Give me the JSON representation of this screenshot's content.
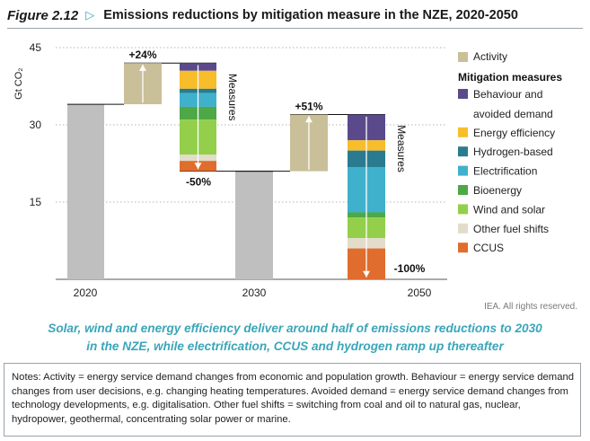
{
  "figure": {
    "label": "Figure 2.12",
    "title": "Emissions reductions by mitigation measure in the NZE, 2020-2050",
    "rights": "IEA. All rights reserved.",
    "caption_line1": "Solar, wind and energy efficiency deliver around half of emissions reductions to 2030",
    "caption_line2": "in the NZE, while electrification, CCUS and hydrogen ramp up thereafter",
    "notes": "Notes: Activity = energy service demand changes from economic and population growth. Behaviour = energy service demand changes from user decisions, e.g. changing heating temperatures. Avoided demand = energy service demand changes from technology developments, e.g. digitalisation. Other fuel shifts = switching from coal and oil to natural gas, nuclear, hydropower, geothermal, concentrating solar power or marine."
  },
  "chart_data": {
    "type": "bar",
    "subtype": "waterfall",
    "ylabel": "Gt CO₂",
    "ylim": [
      0,
      45
    ],
    "yticks": [
      15,
      30,
      45
    ],
    "grid": "horizontal dotted",
    "categories": [
      "2020",
      "2030",
      "2050"
    ],
    "totals": [
      {
        "label": "2020",
        "value": 34
      },
      {
        "label": "2030",
        "value": 21
      },
      {
        "label": "2050",
        "value": 0
      }
    ],
    "activity_steps": [
      {
        "from": 34,
        "to": 42,
        "label": "+24%"
      },
      {
        "from": 21,
        "to": 32,
        "label": "+51%"
      }
    ],
    "mitigation_steps": [
      {
        "label": "-50%",
        "axis_label": "Measures",
        "from": 42,
        "to": 21,
        "segments": [
          {
            "name": "Behaviour and avoided demand",
            "value": 1.5
          },
          {
            "name": "Energy efficiency",
            "value": 3.5
          },
          {
            "name": "Hydrogen-based",
            "value": 0.8
          },
          {
            "name": "Electrification",
            "value": 2.7
          },
          {
            "name": "Bioenergy",
            "value": 2.5
          },
          {
            "name": "Wind and solar",
            "value": 6.8
          },
          {
            "name": "Other fuel shifts",
            "value": 1.2
          },
          {
            "name": "CCUS",
            "value": 2.0
          }
        ]
      },
      {
        "label": "-100%",
        "axis_label": "Measures",
        "from": 32,
        "to": 0,
        "segments": [
          {
            "name": "Behaviour and avoided demand",
            "value": 5.0
          },
          {
            "name": "Energy efficiency",
            "value": 2.0
          },
          {
            "name": "Hydrogen-based",
            "value": 3.2
          },
          {
            "name": "Electrification",
            "value": 8.8
          },
          {
            "name": "Bioenergy",
            "value": 1.0
          },
          {
            "name": "Wind and solar",
            "value": 4.0
          },
          {
            "name": "Other fuel shifts",
            "value": 2.0
          },
          {
            "name": "CCUS",
            "value": 6.0
          }
        ]
      }
    ],
    "legend": {
      "placement": "right",
      "activity": {
        "name": "Activity",
        "color": "#c9bf98"
      },
      "heading": "Mitigation measures",
      "items": [
        {
          "name": "Behaviour and avoided demand",
          "lines": [
            "Behaviour and",
            "avoided demand"
          ],
          "color": "#5b4a8b"
        },
        {
          "name": "Energy efficiency",
          "lines": [
            "Energy efficiency"
          ],
          "color": "#f7bd2b"
        },
        {
          "name": "Hydrogen-based",
          "lines": [
            "Hydrogen-based"
          ],
          "color": "#2a7b8f"
        },
        {
          "name": "Electrification",
          "lines": [
            "Electrification"
          ],
          "color": "#3fb1cc"
        },
        {
          "name": "Bioenergy",
          "lines": [
            "Bioenergy"
          ],
          "color": "#4ea846"
        },
        {
          "name": "Wind and solar",
          "lines": [
            "Wind and solar"
          ],
          "color": "#93cf4a"
        },
        {
          "name": "Other fuel shifts",
          "lines": [
            "Other fuel shifts"
          ],
          "color": "#e3dccb"
        },
        {
          "name": "CCUS",
          "lines": [
            "CCUS"
          ],
          "color": "#e06d2d"
        }
      ]
    },
    "total_color": "#bfbfbf"
  }
}
